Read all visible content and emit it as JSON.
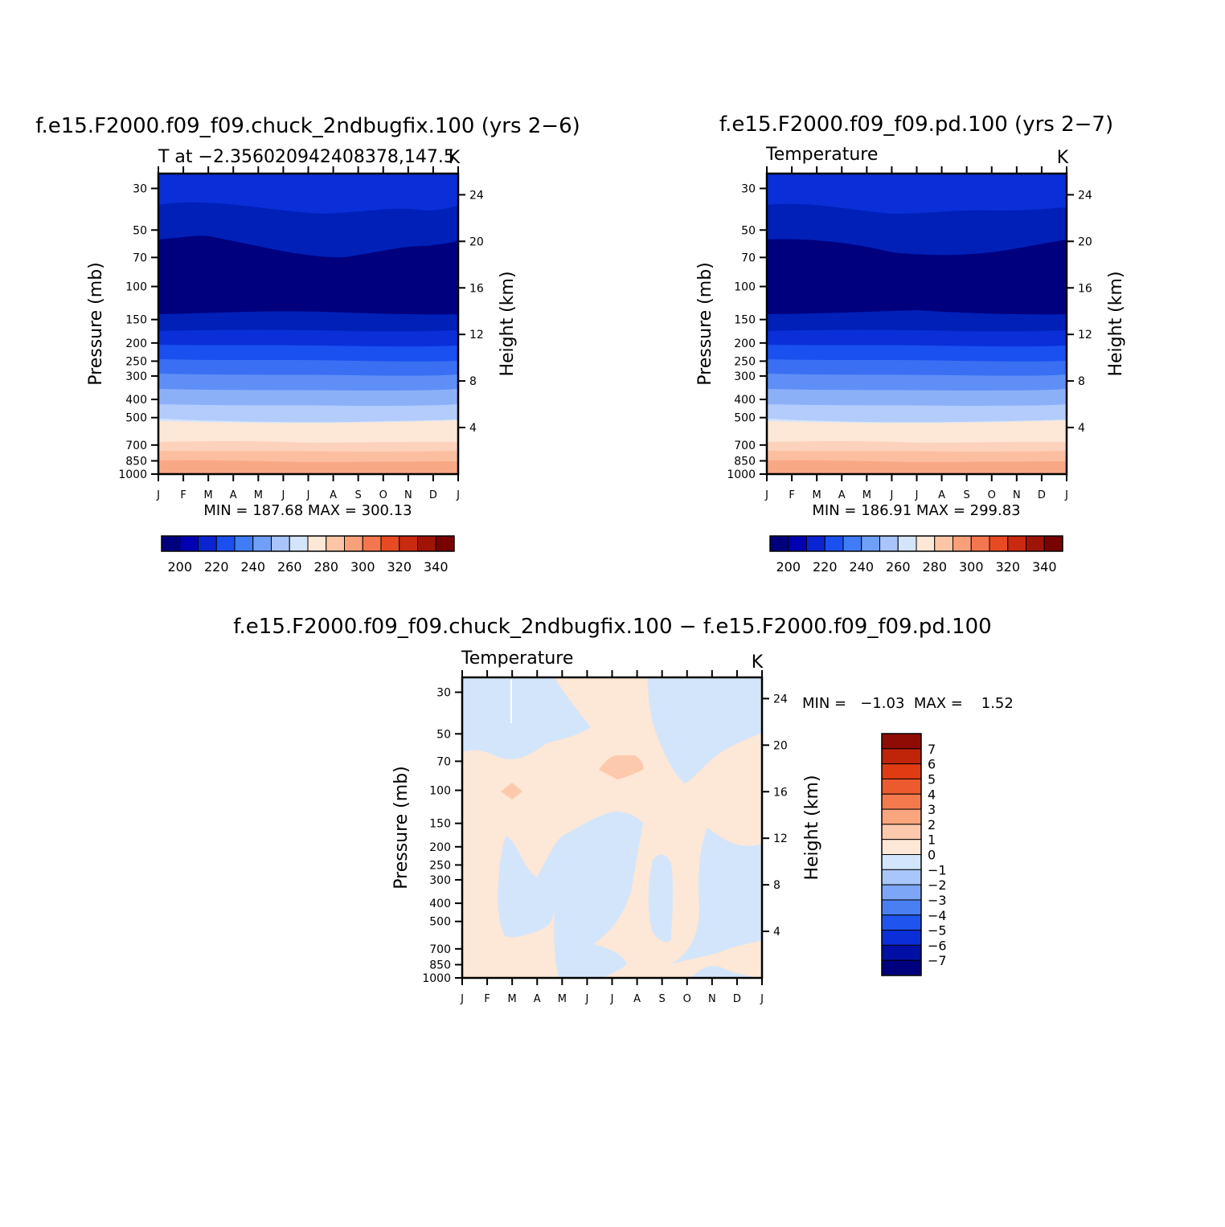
{
  "colors": {
    "temp": [
      "#00007f",
      "#0000b2",
      "#0a24d1",
      "#1a4ff0",
      "#3f7cf5",
      "#6f9ff7",
      "#a8c4fa",
      "#d3e4fb",
      "#fde7d6",
      "#fcc6a6",
      "#f9a07a",
      "#f4764f",
      "#e84a24",
      "#c92a10",
      "#a01406",
      "#780200"
    ],
    "diff": [
      "#00007f",
      "#0010a5",
      "#0a2fd8",
      "#1f55ee",
      "#4a7ff4",
      "#7ea6f7",
      "#a9c6fa",
      "#d3e5fb",
      "#fde7d6",
      "#fcc9ad",
      "#f9a57e",
      "#f47a4e",
      "#ec5a2f",
      "#e03c13",
      "#c02409",
      "#8f0c04"
    ]
  },
  "panels": {
    "p1": {
      "title": "f.e15.F2000.f09_f09.chuck_2ndbugfix.100 (yrs 2−6)",
      "subtitle": "T at −2.356020942408378,147.5",
      "units": "K",
      "ylabel": "Pressure (mb)",
      "ylabel_right": "Height (km)",
      "minmax": "MIN = 187.68  MAX = 300.13",
      "colorbar_labels": [
        "200",
        "220",
        "240",
        "260",
        "280",
        "300",
        "320",
        "340"
      ]
    },
    "p2": {
      "title": "f.e15.F2000.f09_f09.pd.100 (yrs 2−7)",
      "subtitle": "Temperature",
      "units": "K",
      "ylabel": "Pressure (mb)",
      "ylabel_right": "Height (km)",
      "minmax": "MIN = 186.91  MAX = 299.83",
      "colorbar_labels": [
        "200",
        "220",
        "240",
        "260",
        "280",
        "300",
        "320",
        "340"
      ]
    },
    "p3": {
      "title": "f.e15.F2000.f09_f09.chuck_2ndbugfix.100 − f.e15.F2000.f09_f09.pd.100",
      "subtitle": "Temperature",
      "units": "K",
      "ylabel": "Pressure (mb)",
      "ylabel_right": "Height (km)",
      "minmax": "MIN =   −1.03  MAX =    1.52",
      "colorbar_labels": [
        "7",
        "6",
        "5",
        "4",
        "3",
        "2",
        "1",
        "0",
        "−1",
        "−2",
        "−3",
        "−4",
        "−5",
        "−6",
        "−7"
      ]
    }
  },
  "chart_data": [
    {
      "type": "heatmap",
      "title": "f.e15.F2000.f09_f09.chuck_2ndbugfix.100 (yrs 2−6)",
      "subtitle": "T at −2.356020942408378,147.5",
      "units": "K",
      "x_ticks": [
        "J",
        "F",
        "M",
        "A",
        "M",
        "J",
        "J",
        "A",
        "S",
        "O",
        "N",
        "D",
        "J"
      ],
      "y_ticks": [
        30,
        50,
        70,
        100,
        150,
        200,
        250,
        300,
        400,
        500,
        700,
        850,
        1000
      ],
      "y_ticks_right": [
        24,
        20,
        16,
        12,
        8,
        4
      ],
      "ylabel": "Pressure (mb)",
      "ylabel_right": "Height (km)",
      "ylim": [
        1000,
        25
      ],
      "y_scale": "log",
      "contour_levels": [
        190,
        200,
        210,
        220,
        230,
        240,
        250,
        260,
        270,
        280,
        290,
        300,
        310,
        320,
        330,
        340
      ],
      "min": 187.68,
      "max": 300.13,
      "colorbar_ticks": [
        200,
        220,
        240,
        260,
        280,
        300,
        320,
        340
      ]
    },
    {
      "type": "heatmap",
      "title": "f.e15.F2000.f09_f09.pd.100 (yrs 2−7)",
      "subtitle": "Temperature",
      "units": "K",
      "x_ticks": [
        "J",
        "F",
        "M",
        "A",
        "M",
        "J",
        "J",
        "A",
        "S",
        "O",
        "N",
        "D",
        "J"
      ],
      "y_ticks": [
        30,
        50,
        70,
        100,
        150,
        200,
        250,
        300,
        400,
        500,
        700,
        850,
        1000
      ],
      "y_ticks_right": [
        24,
        20,
        16,
        12,
        8,
        4
      ],
      "ylabel": "Pressure (mb)",
      "ylabel_right": "Height (km)",
      "ylim": [
        1000,
        25
      ],
      "y_scale": "log",
      "min": 186.91,
      "max": 299.83,
      "colorbar_ticks": [
        200,
        220,
        240,
        260,
        280,
        300,
        320,
        340
      ]
    },
    {
      "type": "heatmap",
      "title": "f.e15.F2000.f09_f09.chuck_2ndbugfix.100 − f.e15.F2000.f09_f09.pd.100",
      "subtitle": "Temperature",
      "units": "K",
      "x_ticks": [
        "J",
        "F",
        "M",
        "A",
        "M",
        "J",
        "J",
        "A",
        "S",
        "O",
        "N",
        "D",
        "J"
      ],
      "y_ticks": [
        30,
        50,
        70,
        100,
        150,
        200,
        250,
        300,
        400,
        500,
        700,
        850,
        1000
      ],
      "y_ticks_right": [
        24,
        20,
        16,
        12,
        8,
        4
      ],
      "ylabel": "Pressure (mb)",
      "ylabel_right": "Height (km)",
      "y_scale": "log",
      "min": -1.03,
      "max": 1.52,
      "colorbar_ticks": [
        7,
        6,
        5,
        4,
        3,
        2,
        1,
        0,
        -1,
        -2,
        -3,
        -4,
        -5,
        -6,
        -7
      ]
    }
  ]
}
